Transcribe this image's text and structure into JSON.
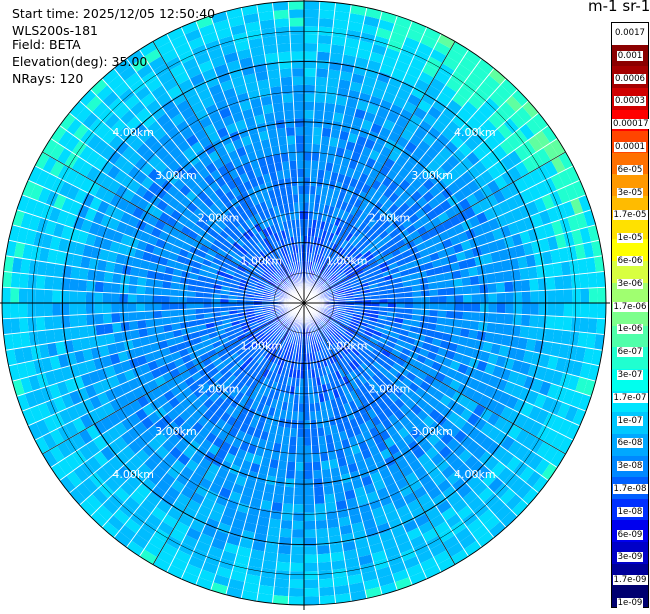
{
  "header": {
    "start_time": "Start time: 2025/12/05 12:50:40",
    "instrument": "WLS200s-181",
    "field": "Field: BETA",
    "elevation": "Elevation(deg): 35.00",
    "nrays": "NRays: 120"
  },
  "colorbar": {
    "unit_label": "m-1 sr-1",
    "ticks": [
      "0.0017",
      "0.001",
      "0.0006",
      "0.0003",
      "0.00017",
      "0.0001",
      "6e-05",
      "3e-05",
      "1.7e-05",
      "1e-05",
      "6e-06",
      "3e-06",
      "1.7e-06",
      "1e-06",
      "6e-07",
      "3e-07",
      "1.7e-07",
      "1e-07",
      "6e-08",
      "3e-08",
      "1.7e-08",
      "1e-08",
      "6e-09",
      "3e-09",
      "1.7e-09",
      "1e-09"
    ],
    "colors": [
      "#ffffff",
      "#8b0000",
      "#a50000",
      "#d00000",
      "#ff0000",
      "#ff4500",
      "#ff7000",
      "#ff9900",
      "#ffbb00",
      "#ffe100",
      "#ffff00",
      "#d8ff40",
      "#a0ff70",
      "#7cff8c",
      "#50ffaa",
      "#20ffd0",
      "#00ffee",
      "#00e5ff",
      "#00c8ff",
      "#00a8ff",
      "#0088ff",
      "#0060ff",
      "#0030ff",
      "#0000ee",
      "#0000c8",
      "#00009a",
      "#000070"
    ]
  },
  "chart_data": {
    "type": "heatmap",
    "projection": "polar PPI",
    "field": "BETA",
    "elevation_deg": 35.0,
    "n_rays": 120,
    "range_labels": [
      "1.00km",
      "2.00km",
      "3.00km",
      "4.00km"
    ],
    "max_range_km": 5.0,
    "value_distribution": {
      "0-1km": "1e-08 to 3e-08 (blue)",
      "1-2km": "3e-08 to 6e-08",
      "2-3km": "6e-08 to 1e-07",
      "3-4km": "6e-08 to 1.7e-07 (light blue to cyan)",
      "4-5km": "1e-07 to 3e-07 (cyan to green, SE sector highest)"
    },
    "colorscale": "log",
    "vmin": 1e-09,
    "vmax": 0.0017
  }
}
